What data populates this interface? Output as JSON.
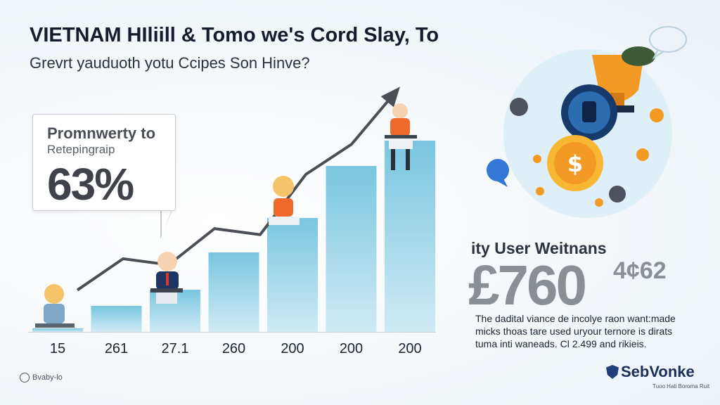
{
  "header": {
    "title": "VIETNAM HIliill & Tomo we's Cord Slay, To",
    "subtitle": "Grevrt yauduoth yotu Ccipes Son Hinve?"
  },
  "callout": {
    "heading": "Promnwerty to",
    "subheading": "Retepingraip",
    "value": "63%"
  },
  "chart_data": {
    "type": "bar",
    "categories": [
      "15",
      "261",
      "27.1",
      "260",
      "200",
      "200",
      "200"
    ],
    "values": [
      5,
      37,
      60,
      113,
      162,
      236,
      272
    ],
    "value_scale": "estimated relative heights, no value axis printed",
    "trend_line": [
      18,
      70,
      60,
      120,
      110,
      210,
      260,
      350
    ],
    "ylim": [
      0,
      300
    ],
    "grid": false,
    "legend": "none",
    "bar_color": "#79c6e0"
  },
  "stats": {
    "heading": "ity User Weitnans",
    "value": "£760",
    "value_sup": "4¢62",
    "description": [
      "The dadital viance de incolye raon want:made",
      "micks thoas tare used uryour ternore is dirats",
      "tuma inti waneads. Cl 2.499 and rikieis."
    ]
  },
  "footer": {
    "left_text": "Bvaby-lo",
    "brand": "SebVonke",
    "brand_tagline": "Tuoo Hati Boroma Ruit"
  },
  "colors": {
    "accent_dark": "#141c2e",
    "bar": "#79c6e0",
    "arrow": "#4b4f55",
    "coin_orange": "#f39a24",
    "coin_navy": "#163a6b"
  }
}
